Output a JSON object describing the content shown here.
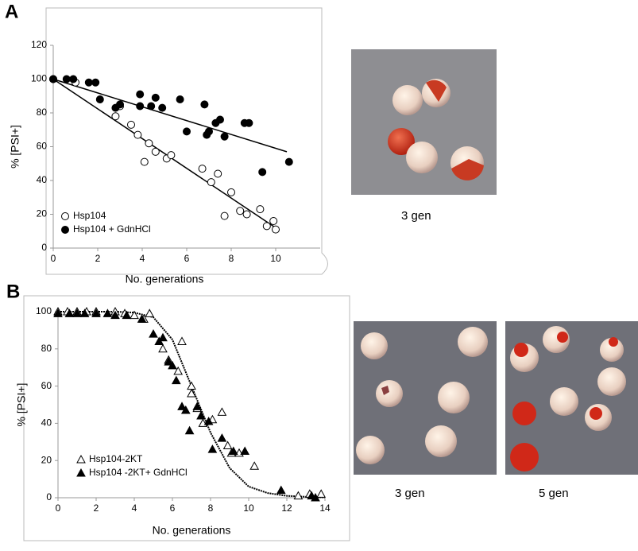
{
  "panel_labels": [
    "A",
    "B"
  ],
  "photo_captions": [
    "3 gen",
    "3 gen",
    "5 gen"
  ],
  "chart_data": [
    {
      "type": "scatter",
      "xlabel": "No. generations",
      "ylabel": "% [PSI+]",
      "xlim": [
        0,
        12
      ],
      "xticks": [
        0,
        2,
        4,
        6,
        8,
        10
      ],
      "ylim": [
        0,
        120
      ],
      "yticks": [
        0,
        20,
        40,
        60,
        80,
        100,
        120
      ],
      "series": [
        {
          "name": "Hsp104",
          "marker": "circle",
          "filled": false,
          "color": "#000000",
          "x": [
            0,
            1,
            2.8,
            3.0,
            3.5,
            3.8,
            4.1,
            4.3,
            4.6,
            5.1,
            5.3,
            6.7,
            7.1,
            7.4,
            7.7,
            8.0,
            8.4,
            8.7,
            9.3,
            9.6,
            9.9,
            10.0
          ],
          "values": [
            100,
            98,
            78,
            84,
            73,
            67,
            51,
            62,
            57,
            53,
            55,
            47,
            39,
            44,
            19,
            33,
            22,
            20,
            23,
            13,
            16,
            11
          ]
        },
        {
          "name": "Hsp104  + GdnHCl",
          "marker": "circle",
          "filled": true,
          "color": "#000000",
          "x": [
            0,
            0.6,
            0.9,
            1.6,
            1.9,
            2.1,
            2.8,
            3.0,
            3.9,
            3.9,
            4.4,
            4.6,
            4.9,
            5.7,
            6.0,
            6.8,
            6.9,
            7.0,
            7.3,
            7.5,
            7.7,
            8.6,
            8.8,
            9.4,
            10.6
          ],
          "values": [
            100,
            100,
            100,
            98,
            98,
            88,
            83,
            85,
            84,
            91,
            84,
            89,
            83,
            88,
            69,
            85,
            67,
            69,
            74,
            76,
            66,
            74,
            74,
            45,
            51
          ]
        }
      ],
      "trend_lines": [
        {
          "x": [
            0,
            10
          ],
          "values": [
            100,
            12
          ]
        },
        {
          "x": [
            0,
            10.5
          ],
          "values": [
            100,
            57
          ]
        }
      ]
    },
    {
      "type": "scatter",
      "xlabel": "No. generations",
      "ylabel": "% [PSI+]",
      "xlim": [
        0,
        14
      ],
      "xticks": [
        0,
        2,
        4,
        6,
        8,
        10,
        12,
        14
      ],
      "ylim": [
        0,
        100
      ],
      "yticks": [
        0,
        20,
        40,
        60,
        80,
        100
      ],
      "series": [
        {
          "name": "Hsp104-2KT",
          "marker": "triangle",
          "filled": false,
          "color": "#000000",
          "x": [
            0,
            0.5,
            1,
            1.5,
            2,
            3,
            3.5,
            4,
            4.5,
            4.8,
            5.5,
            5.8,
            6.3,
            6.5,
            7,
            7,
            7.3,
            7.6,
            8.1,
            8.6,
            8.9,
            9.1,
            9.5,
            10.3,
            12.6,
            13.2,
            13.8
          ],
          "values": [
            100,
            100,
            100,
            100,
            100,
            100,
            99,
            98,
            96,
            99,
            80,
            74,
            68,
            84,
            60,
            56,
            48,
            40,
            42,
            46,
            28,
            24,
            24,
            17,
            1,
            2,
            2
          ]
        },
        {
          "name": "Hsp104  -2KT+ GdnHCl",
          "marker": "triangle",
          "filled": true,
          "color": "#000000",
          "x": [
            0,
            0.6,
            1,
            1.4,
            2,
            2.6,
            3,
            3.6,
            4.4,
            5,
            5.3,
            5.5,
            5.8,
            6,
            6.2,
            6.5,
            6.7,
            6.9,
            7.3,
            7.5,
            7.9,
            8.1,
            8.6,
            9.2,
            9.8,
            11.7,
            13.3,
            13.5
          ],
          "values": [
            99,
            99,
            99,
            99,
            99,
            99,
            98,
            98,
            96,
            88,
            84,
            86,
            73,
            71,
            63,
            49,
            47,
            36,
            49,
            44,
            41,
            26,
            32,
            25,
            25,
            4,
            1,
            0
          ]
        }
      ],
      "trend_lines": [
        {
          "x": [
            0,
            1,
            2,
            3,
            4,
            5,
            6,
            7,
            8,
            9,
            10,
            11,
            12,
            13,
            14
          ],
          "values": [
            100,
            100,
            100,
            100,
            99.5,
            97,
            85,
            60,
            35,
            16,
            6,
            2.5,
            1,
            0.5,
            0.2
          ]
        }
      ]
    }
  ]
}
